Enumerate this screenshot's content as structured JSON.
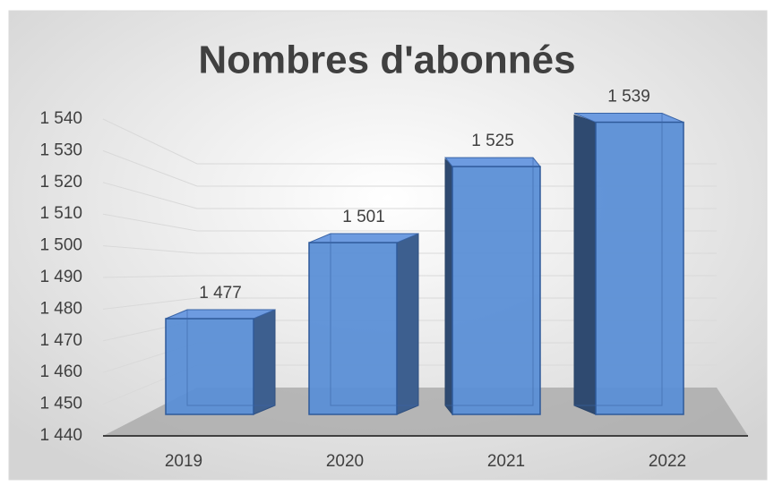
{
  "chart_data": {
    "type": "bar3d",
    "title": "Nombres d'abonnés",
    "categories": [
      "2019",
      "2020",
      "2021",
      "2022"
    ],
    "values": [
      1477,
      1501,
      1525,
      1539
    ],
    "value_labels": [
      "1 477",
      "1 501",
      "1 525",
      "1 539"
    ],
    "color": "#5b8fd6",
    "ylim": [
      1440,
      1540
    ],
    "yticks": [
      {
        "value": 1440,
        "label": "1 440"
      },
      {
        "value": 1450,
        "label": "1 450"
      },
      {
        "value": 1460,
        "label": "1 460"
      },
      {
        "value": 1470,
        "label": "1 470"
      },
      {
        "value": 1480,
        "label": "1 480"
      },
      {
        "value": 1490,
        "label": "1 490"
      },
      {
        "value": 1500,
        "label": "1 500"
      },
      {
        "value": 1510,
        "label": "1 510"
      },
      {
        "value": 1520,
        "label": "1 520"
      },
      {
        "value": 1530,
        "label": "1 530"
      },
      {
        "value": 1540,
        "label": "1 540"
      }
    ],
    "grid": true
  }
}
